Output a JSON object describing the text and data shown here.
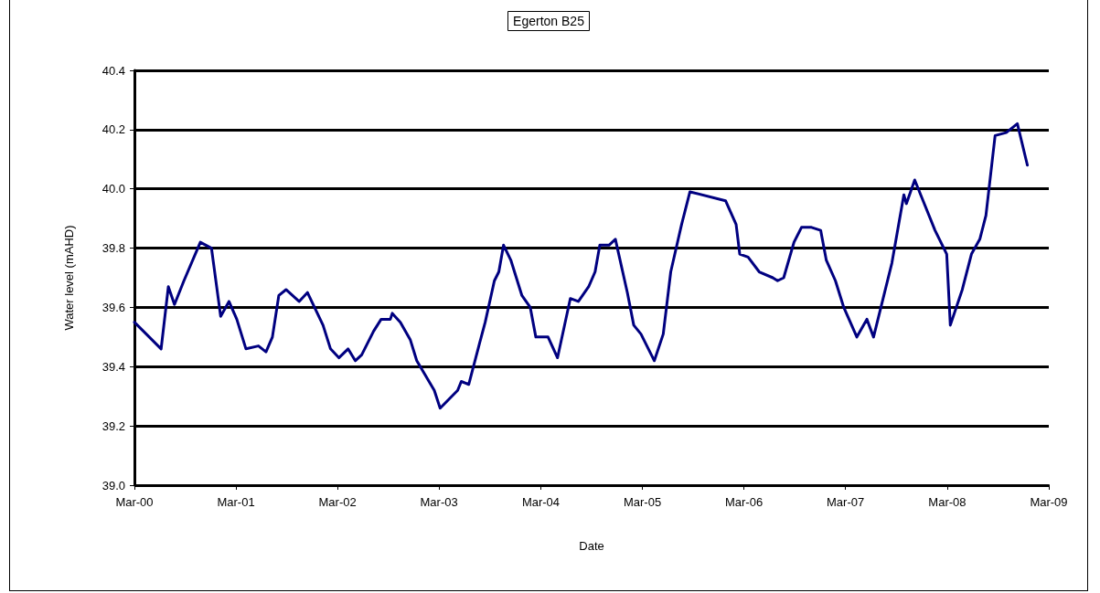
{
  "chart_data": {
    "type": "line",
    "title": "Egerton B25",
    "xlabel": "Date",
    "ylabel": "Water level (mAHD)",
    "x": [
      "2000-03-01",
      "2000-06-05",
      "2000-07-01",
      "2000-07-23",
      "2000-08-26",
      "2000-10-24",
      "2000-12-03",
      "2001-01-05",
      "2001-02-04",
      "2001-03-04",
      "2001-04-06",
      "2001-05-21",
      "2001-06-17",
      "2001-07-10",
      "2001-08-02",
      "2001-08-28",
      "2001-10-14",
      "2001-11-13",
      "2002-01-08",
      "2002-02-04",
      "2002-03-06",
      "2002-04-08",
      "2002-05-04",
      "2002-05-27",
      "2002-07-09",
      "2002-08-05",
      "2002-09-07",
      "2002-09-14",
      "2002-10-13",
      "2002-11-18",
      "2002-12-11",
      "2003-02-12",
      "2003-03-05",
      "2003-05-07",
      "2003-05-20",
      "2003-06-16",
      "2003-07-25",
      "2003-08-14",
      "2003-09-16",
      "2003-10-02",
      "2003-10-19",
      "2003-11-14",
      "2003-12-24",
      "2004-01-23",
      "2004-02-12",
      "2004-03-27",
      "2004-04-30",
      "2004-06-15",
      "2004-07-14",
      "2004-08-20",
      "2004-09-12",
      "2004-09-29",
      "2004-11-01",
      "2004-11-24",
      "2005-01-06",
      "2005-01-29",
      "2005-02-24",
      "2005-04-13",
      "2005-05-15",
      "2005-06-11",
      "2005-07-20",
      "2005-08-19",
      "2005-12-25",
      "2006-02-01",
      "2006-02-14",
      "2006-03-16",
      "2006-04-25",
      "2006-06-13",
      "2006-06-30",
      "2006-07-22",
      "2006-08-28",
      "2006-09-24",
      "2006-10-30",
      "2006-12-02",
      "2006-12-22",
      "2007-01-24",
      "2007-02-23",
      "2007-04-11",
      "2007-05-17",
      "2007-06-10",
      "2007-08-15",
      "2007-09-27",
      "2007-10-06",
      "2007-11-05",
      "2008-01-17",
      "2008-02-28",
      "2008-03-12",
      "2008-04-24",
      "2008-05-27",
      "2008-06-26",
      "2008-07-18",
      "2008-08-20",
      "2008-09-29",
      "2008-11-08",
      "2008-12-14"
    ],
    "series": [
      {
        "color": "#000080",
        "values": [
          39.55,
          39.46,
          39.67,
          39.61,
          39.69,
          39.82,
          39.8,
          39.57,
          39.62,
          39.56,
          39.46,
          39.47,
          39.45,
          39.5,
          39.64,
          39.66,
          39.62,
          39.65,
          39.54,
          39.46,
          39.43,
          39.46,
          39.42,
          39.44,
          39.52,
          39.56,
          39.56,
          39.58,
          39.55,
          39.49,
          39.42,
          39.32,
          39.26,
          39.32,
          39.35,
          39.34,
          39.48,
          39.55,
          39.69,
          39.72,
          39.81,
          39.76,
          39.64,
          39.6,
          39.5,
          39.5,
          39.43,
          39.63,
          39.62,
          39.67,
          39.72,
          39.81,
          39.81,
          39.83,
          39.65,
          39.54,
          39.51,
          39.42,
          39.51,
          39.72,
          39.88,
          39.99,
          39.96,
          39.88,
          39.78,
          39.77,
          39.72,
          39.7,
          39.69,
          39.7,
          39.82,
          39.87,
          39.87,
          39.86,
          39.76,
          39.69,
          39.6,
          39.5,
          39.56,
          39.5,
          39.75,
          39.98,
          39.95,
          40.03,
          39.86,
          39.78,
          39.54,
          39.66,
          39.78,
          39.83,
          39.91,
          40.18,
          40.19,
          40.22,
          40.08
        ]
      }
    ],
    "xlim": [
      "2000-03-01",
      "2009-03-01"
    ],
    "xticks": [
      {
        "value": "2000-03-01",
        "label": "Mar-00"
      },
      {
        "value": "2001-03-01",
        "label": "Mar-01"
      },
      {
        "value": "2002-03-01",
        "label": "Mar-02"
      },
      {
        "value": "2003-03-01",
        "label": "Mar-03"
      },
      {
        "value": "2004-03-01",
        "label": "Mar-04"
      },
      {
        "value": "2005-03-01",
        "label": "Mar-05"
      },
      {
        "value": "2006-03-01",
        "label": "Mar-06"
      },
      {
        "value": "2007-03-01",
        "label": "Mar-07"
      },
      {
        "value": "2008-03-01",
        "label": "Mar-08"
      },
      {
        "value": "2009-03-01",
        "label": "Mar-09"
      }
    ],
    "ylim": [
      39.0,
      40.4
    ],
    "yticks": [
      {
        "value": 39.0,
        "label": "39.0"
      },
      {
        "value": 39.2,
        "label": "39.2"
      },
      {
        "value": 39.4,
        "label": "39.4"
      },
      {
        "value": 39.6,
        "label": "39.6"
      },
      {
        "value": 39.8,
        "label": "39.8"
      },
      {
        "value": 40.0,
        "label": "40.0"
      },
      {
        "value": 40.2,
        "label": "40.2"
      },
      {
        "value": 40.4,
        "label": "40.4"
      }
    ],
    "grid": "y",
    "marker": "none",
    "line_style": "solid"
  }
}
